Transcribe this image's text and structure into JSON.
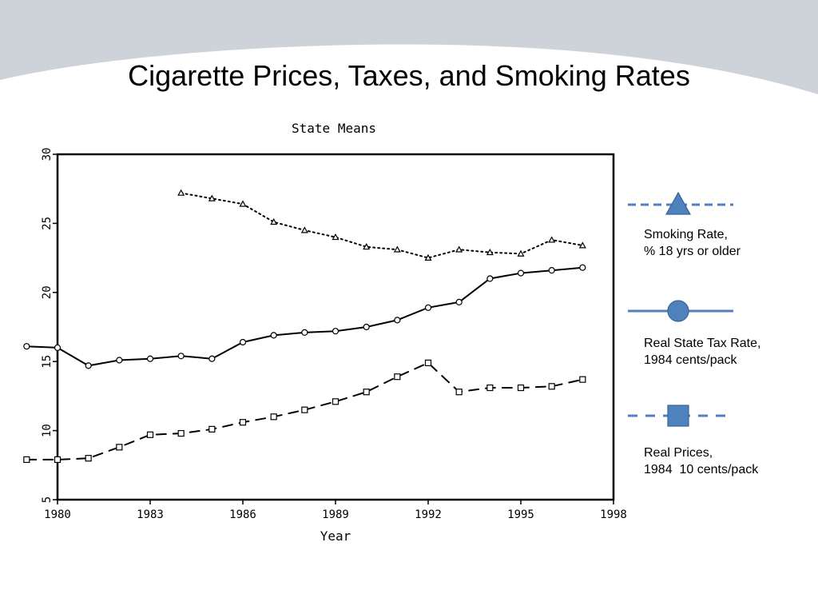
{
  "slide": {
    "title": "Cigarette Prices, Taxes, and Smoking Rates"
  },
  "colors": {
    "banner": "#cdd3d8",
    "legend_line": "#4f81bd",
    "legend_marker_fill": "#4f81bd",
    "legend_marker_stroke": "#3a6496"
  },
  "legend": [
    {
      "marker": "triangle",
      "line_style": "dashed",
      "line1": "Smoking Rate,",
      "line2": "% 18 yrs or older"
    },
    {
      "marker": "circle",
      "line_style": "solid",
      "line1": "Real State Tax Rate,",
      "line2": "1984 cents/pack"
    },
    {
      "marker": "square",
      "line_style": "long-dashed",
      "line1": "Real Prices,",
      "line2": "1984  10 cents/pack"
    }
  ],
  "chart_data": {
    "type": "line",
    "title": "State Means",
    "xlabel": "Year",
    "ylabel": "",
    "xlim": [
      1980,
      1998
    ],
    "ylim": [
      5,
      30
    ],
    "x_ticks": [
      1980,
      1983,
      1986,
      1989,
      1992,
      1995,
      1998
    ],
    "y_ticks": [
      5,
      10,
      15,
      20,
      25,
      30
    ],
    "grid": false,
    "series": [
      {
        "marker": "triangle",
        "line_style": "dotted",
        "x": [
          1984,
          1985,
          1986,
          1987,
          1988,
          1989,
          1990,
          1991,
          1992,
          1993,
          1994,
          1995,
          1996,
          1997
        ],
        "values": [
          27.2,
          26.8,
          26.4,
          25.1,
          24.5,
          24.0,
          23.3,
          23.1,
          22.5,
          23.1,
          22.9,
          22.8,
          23.8,
          23.4
        ]
      },
      {
        "marker": "circle",
        "line_style": "solid",
        "x": [
          1979,
          1980,
          1981,
          1982,
          1983,
          1984,
          1985,
          1986,
          1987,
          1988,
          1989,
          1990,
          1991,
          1992,
          1993,
          1994,
          1995,
          1996,
          1997
        ],
        "values": [
          16.1,
          16.0,
          14.7,
          15.1,
          15.2,
          15.4,
          15.2,
          16.4,
          16.9,
          17.1,
          17.2,
          17.5,
          18.0,
          18.9,
          19.3,
          21.0,
          21.4,
          21.6,
          21.8
        ]
      },
      {
        "marker": "square",
        "line_style": "long-dashed",
        "x": [
          1979,
          1980,
          1981,
          1982,
          1983,
          1984,
          1985,
          1986,
          1987,
          1988,
          1989,
          1990,
          1991,
          1992,
          1993,
          1994,
          1995,
          1996,
          1997
        ],
        "values": [
          7.9,
          7.9,
          8.0,
          8.8,
          9.7,
          9.8,
          10.1,
          10.6,
          11.0,
          11.5,
          12.1,
          12.8,
          13.9,
          14.9,
          12.8,
          13.1,
          13.1,
          13.2,
          13.7
        ]
      }
    ]
  }
}
